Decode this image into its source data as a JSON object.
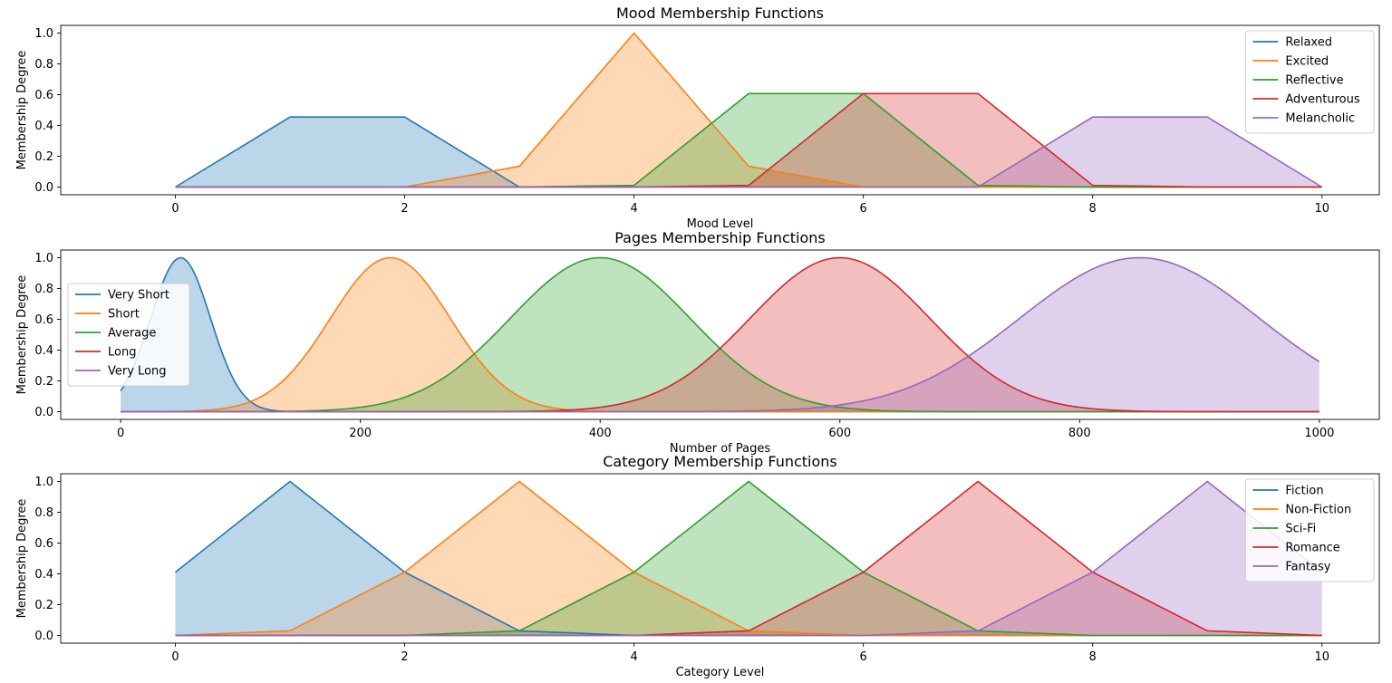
{
  "chart_data": [
    {
      "type": "area",
      "title": "Mood Membership Functions",
      "xlabel": "Mood Level",
      "ylabel": "Membership Degree",
      "xlim": [
        -1,
        10.5
      ],
      "ylim": [
        -0.05,
        1.05
      ],
      "xticks": [
        0,
        2,
        4,
        6,
        8,
        10
      ],
      "yticks": [
        0.0,
        0.2,
        0.4,
        0.6,
        0.8,
        1.0
      ],
      "legend": "top-right",
      "series": [
        {
          "name": "Relaxed",
          "color": "#1f77b4",
          "x": [
            0,
            1,
            2,
            3,
            4,
            5,
            6,
            7,
            8,
            9,
            10
          ],
          "values": [
            0,
            0.455,
            0.455,
            0,
            0,
            0,
            0,
            0,
            0,
            0,
            0
          ]
        },
        {
          "name": "Excited",
          "color": "#ff7f0e",
          "x": [
            0,
            1,
            2,
            3,
            4,
            5,
            6,
            7,
            8,
            9,
            10
          ],
          "values": [
            0,
            0,
            0,
            0.135,
            1.0,
            0.135,
            0,
            0,
            0,
            0,
            0
          ]
        },
        {
          "name": "Reflective",
          "color": "#2ca02c",
          "x": [
            0,
            1,
            2,
            3,
            4,
            5,
            6,
            7,
            8,
            9,
            10
          ],
          "values": [
            0,
            0,
            0,
            0,
            0.011,
            0.607,
            0.607,
            0.011,
            0,
            0,
            0
          ]
        },
        {
          "name": "Adventurous",
          "color": "#d62728",
          "x": [
            0,
            1,
            2,
            3,
            4,
            5,
            6,
            7,
            8,
            9,
            10
          ],
          "values": [
            0,
            0,
            0,
            0,
            0,
            0.011,
            0.607,
            0.607,
            0.011,
            0,
            0
          ]
        },
        {
          "name": "Melancholic",
          "color": "#9467bd",
          "x": [
            0,
            1,
            2,
            3,
            4,
            5,
            6,
            7,
            8,
            9,
            10
          ],
          "values": [
            0,
            0,
            0,
            0,
            0,
            0,
            0,
            0,
            0.455,
            0.455,
            0
          ]
        }
      ]
    },
    {
      "type": "area",
      "title": "Pages Membership Functions",
      "xlabel": "Number of Pages",
      "ylabel": "Membership Degree",
      "xlim": [
        -50,
        1050
      ],
      "ylim": [
        -0.05,
        1.05
      ],
      "xticks": [
        0,
        200,
        400,
        600,
        800,
        1000
      ],
      "yticks": [
        0.0,
        0.2,
        0.4,
        0.6,
        0.8,
        1.0
      ],
      "legend": "center-left",
      "series": [
        {
          "name": "Very Short",
          "color": "#1f77b4",
          "gauss": {
            "mean": 50,
            "sigma": 25
          }
        },
        {
          "name": "Short",
          "color": "#ff7f0e",
          "gauss": {
            "mean": 225,
            "sigma": 50
          }
        },
        {
          "name": "Average",
          "color": "#2ca02c",
          "gauss": {
            "mean": 400,
            "sigma": 75
          }
        },
        {
          "name": "Long",
          "color": "#d62728",
          "gauss": {
            "mean": 600,
            "sigma": 75
          }
        },
        {
          "name": "Very Long",
          "color": "#9467bd",
          "gauss": {
            "mean": 850,
            "sigma": 100
          }
        }
      ]
    },
    {
      "type": "area",
      "title": "Category Membership Functions",
      "xlabel": "Category Level",
      "ylabel": "Membership Degree",
      "xlim": [
        -1,
        10.5
      ],
      "ylim": [
        -0.05,
        1.05
      ],
      "xticks": [
        0,
        2,
        4,
        6,
        8,
        10
      ],
      "yticks": [
        0.0,
        0.2,
        0.4,
        0.6,
        0.8,
        1.0
      ],
      "legend": "top-right",
      "series": [
        {
          "name": "Fiction",
          "color": "#1f77b4",
          "x": [
            0,
            1,
            2,
            3,
            4,
            5,
            6,
            7,
            8,
            9,
            10
          ],
          "values": [
            0.411,
            1.0,
            0.411,
            0.03,
            0,
            0,
            0,
            0,
            0,
            0,
            0
          ]
        },
        {
          "name": "Non-Fiction",
          "color": "#ff7f0e",
          "x": [
            0,
            1,
            2,
            3,
            4,
            5,
            6,
            7,
            8,
            9,
            10
          ],
          "values": [
            0,
            0.03,
            0.411,
            1.0,
            0.411,
            0.03,
            0,
            0,
            0,
            0,
            0
          ]
        },
        {
          "name": "Sci-Fi",
          "color": "#2ca02c",
          "x": [
            0,
            1,
            2,
            3,
            4,
            5,
            6,
            7,
            8,
            9,
            10
          ],
          "values": [
            0,
            0,
            0,
            0.03,
            0.411,
            1.0,
            0.411,
            0.03,
            0,
            0,
            0
          ]
        },
        {
          "name": "Romance",
          "color": "#d62728",
          "x": [
            0,
            1,
            2,
            3,
            4,
            5,
            6,
            7,
            8,
            9,
            10
          ],
          "values": [
            0,
            0,
            0,
            0,
            0,
            0.03,
            0.411,
            1.0,
            0.411,
            0.03,
            0
          ]
        },
        {
          "name": "Fantasy",
          "color": "#9467bd",
          "x": [
            0,
            1,
            2,
            3,
            4,
            5,
            6,
            7,
            8,
            9,
            10
          ],
          "values": [
            0,
            0,
            0,
            0,
            0,
            0,
            0,
            0.03,
            0.411,
            1.0,
            0.411
          ]
        }
      ]
    }
  ]
}
